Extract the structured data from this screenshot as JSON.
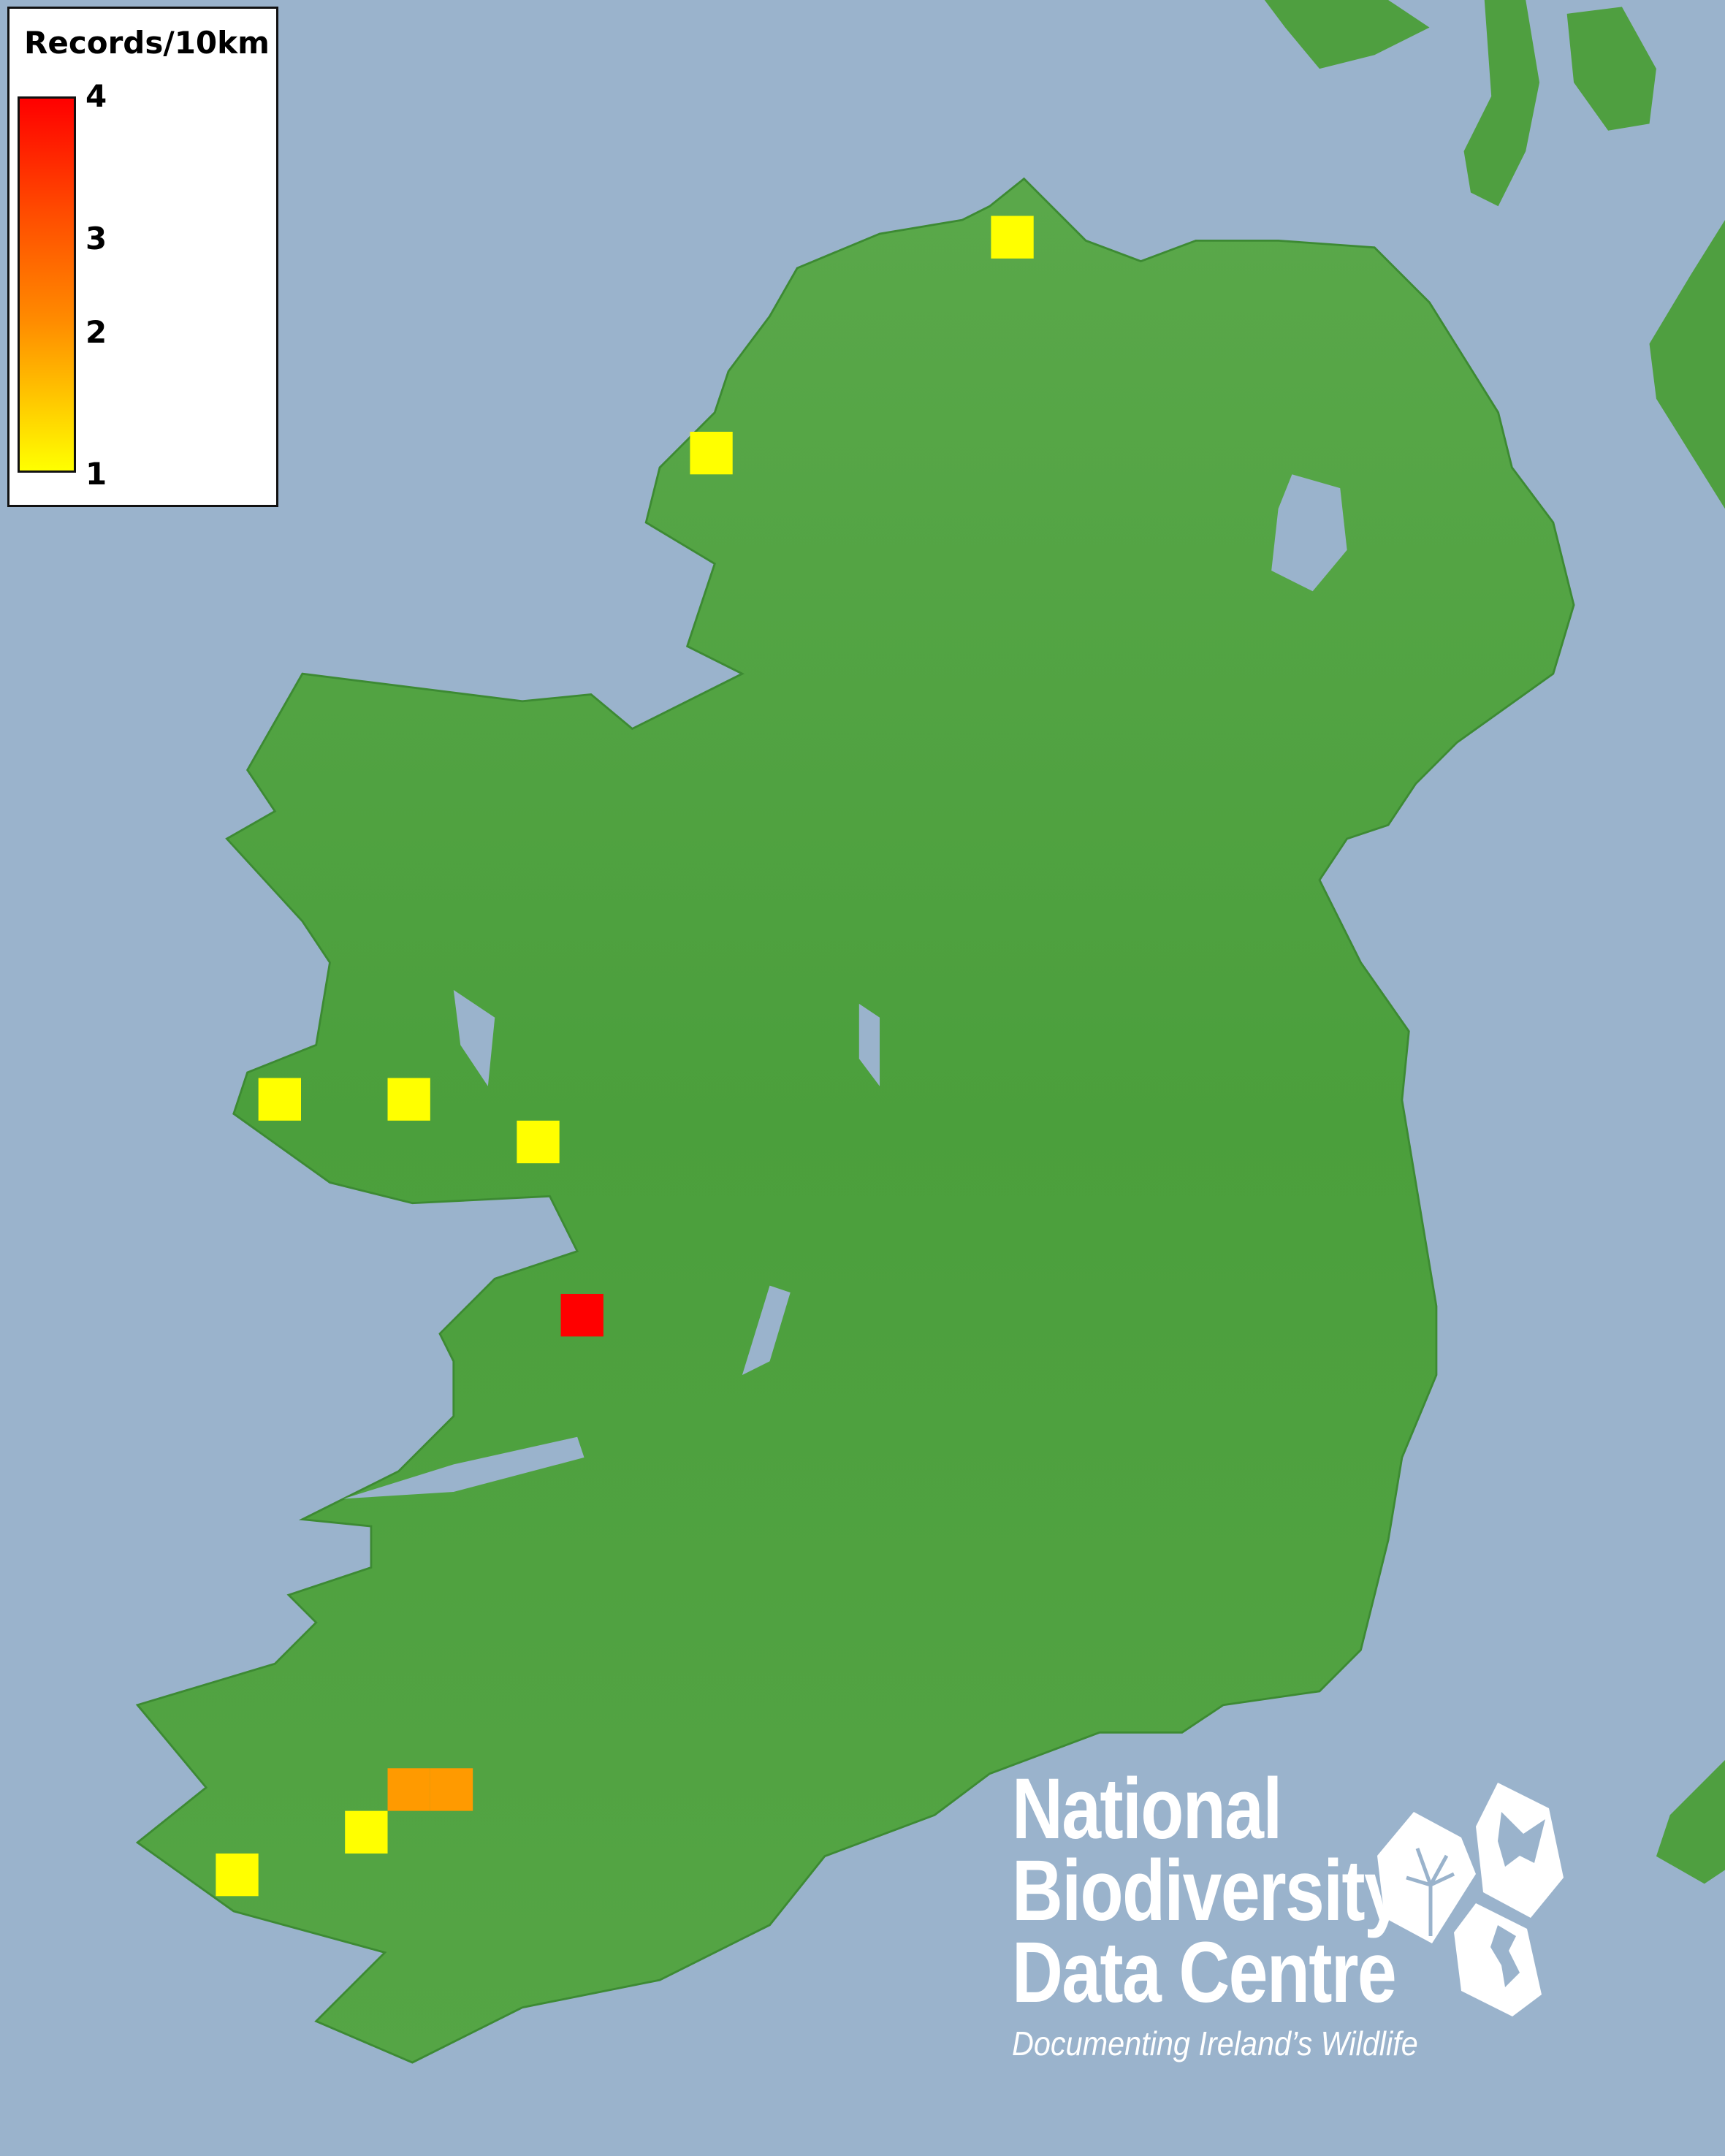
{
  "legend": {
    "title": "Records/10km",
    "ticks": [
      "4",
      "3",
      "2",
      "1"
    ],
    "min": 1,
    "max": 4,
    "color_low": "#ffff00",
    "color_mid": "#ff9a00",
    "color_high": "#ff0000"
  },
  "map": {
    "sea_color": "#9ab3cc",
    "land_color": "#4aa03c",
    "records": [
      1,
      1,
      1,
      1,
      1,
      4,
      2,
      2,
      1,
      1
    ]
  },
  "logo": {
    "line1": "National",
    "line2": "Biodiversity",
    "line3": "Data Centre",
    "tagline": "Documenting Ireland’s Wildlife",
    "icons": [
      "tree-icon",
      "butterfly-icon",
      "seahorse-icon"
    ]
  }
}
